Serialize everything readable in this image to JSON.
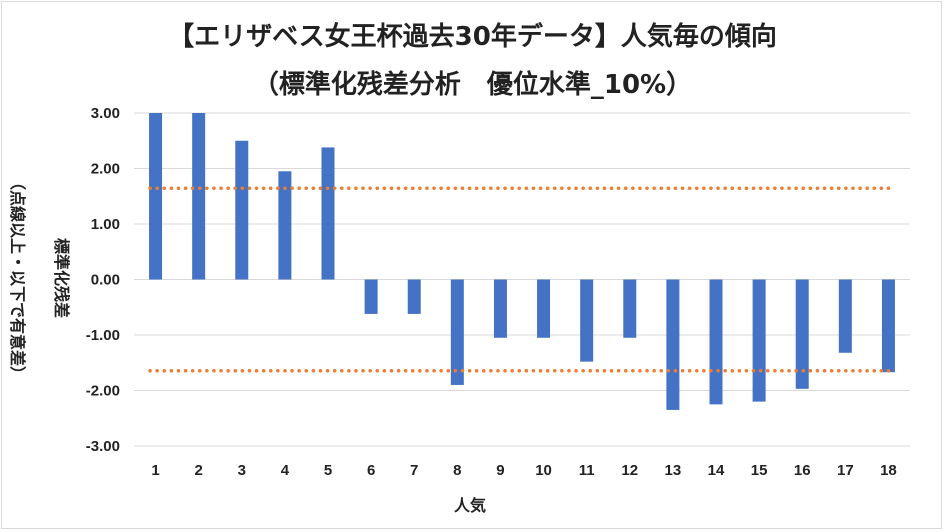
{
  "chart_data": {
    "type": "bar",
    "title": "【エリザベス女王杯過去30年データ】人気毎の傾向",
    "subtitle": "（標準化残差分析　優位水準_10%）",
    "xlabel": "人気",
    "ylabel_main": "標準化残差",
    "ylabel_note": "（点線以上・以下で有意差）",
    "categories": [
      "1",
      "2",
      "3",
      "4",
      "5",
      "6",
      "7",
      "8",
      "9",
      "10",
      "11",
      "12",
      "13",
      "14",
      "15",
      "16",
      "17",
      "18"
    ],
    "values": [
      3.0,
      3.0,
      2.5,
      1.95,
      2.38,
      -0.62,
      -0.62,
      -1.9,
      -1.05,
      -1.05,
      -1.48,
      -1.05,
      -2.35,
      -2.25,
      -2.2,
      -1.97,
      -1.32,
      -1.67
    ],
    "ylim": [
      -3,
      3
    ],
    "ytick_values": [
      3,
      2,
      1,
      0,
      -1,
      -2,
      -3
    ],
    "ytick_labels": [
      "3.00",
      "2.00",
      "1.00",
      "0.00",
      "-1.00",
      "-2.00",
      "-3.00"
    ],
    "thresholds": [
      1.645,
      -1.645
    ],
    "grid": true,
    "colors": {
      "bar": "#4472c4",
      "threshold": "#ed7d31",
      "grid": "#d9d9d9",
      "text": "#222222"
    }
  }
}
